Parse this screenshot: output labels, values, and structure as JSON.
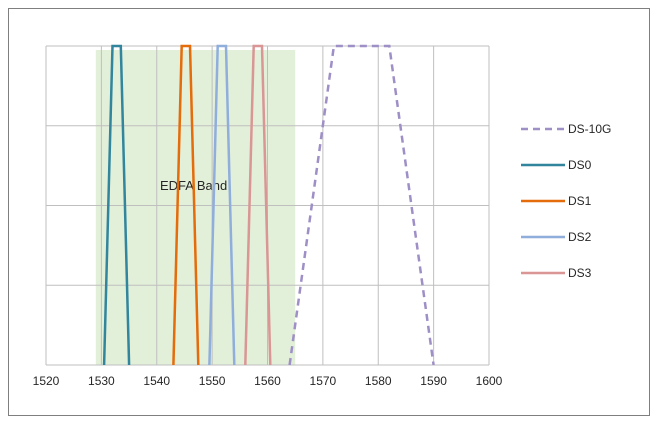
{
  "chart_data": {
    "type": "line",
    "title": "",
    "xlabel": "",
    "ylabel": "",
    "xlim": [
      1520,
      1600
    ],
    "ylim": [
      0,
      4
    ],
    "x_ticks": [
      "1520",
      "1530",
      "1540",
      "1550",
      "1560",
      "1570",
      "1580",
      "1590",
      "1600"
    ],
    "grid": true,
    "legend": "right",
    "band": {
      "label": "EDFA Band",
      "x_range": [
        1529,
        1565
      ],
      "color": "#e2efd9"
    },
    "series": [
      {
        "name": "DS-10G",
        "color": "#9e8fc6",
        "dash": true,
        "x": [
          1564,
          1572,
          1582,
          1590
        ],
        "y": [
          0,
          4,
          4,
          0
        ]
      },
      {
        "name": "DS0",
        "color": "#31859c",
        "dash": false,
        "x": [
          1530.5,
          1532,
          1533.5,
          1535
        ],
        "y": [
          0,
          4,
          4,
          0
        ]
      },
      {
        "name": "DS1",
        "color": "#e46c0a",
        "dash": false,
        "x": [
          1543,
          1544.5,
          1546,
          1547.5
        ],
        "y": [
          0,
          4,
          4,
          0
        ]
      },
      {
        "name": "DS2",
        "color": "#8faedc",
        "dash": false,
        "x": [
          1549.5,
          1551,
          1552.5,
          1554
        ],
        "y": [
          0,
          4,
          4,
          0
        ]
      },
      {
        "name": "DS3",
        "color": "#d99694",
        "dash": false,
        "x": [
          1556,
          1557.5,
          1559,
          1560.5
        ],
        "y": [
          0,
          4,
          4,
          0
        ]
      }
    ]
  }
}
